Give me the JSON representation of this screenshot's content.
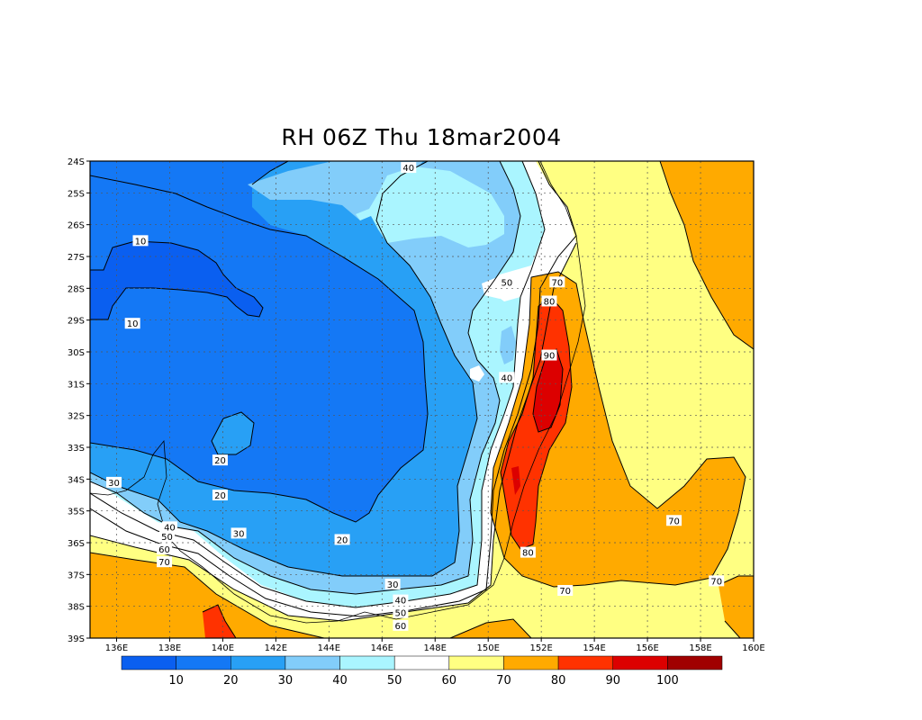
{
  "title": "RH 06Z Thu 18mar2004",
  "chart_data": {
    "type": "contour-map",
    "variable": "RH",
    "lon_range": [
      135,
      160
    ],
    "lat_range": [
      -39,
      -24
    ],
    "lon_ticks": [
      "136E",
      "138E",
      "140E",
      "142E",
      "144E",
      "146E",
      "148E",
      "150E",
      "152E",
      "154E",
      "156E",
      "158E",
      "160E"
    ],
    "lat_ticks": [
      "24S",
      "25S",
      "26S",
      "27S",
      "28S",
      "29S",
      "30S",
      "31S",
      "32S",
      "33S",
      "34S",
      "35S",
      "36S",
      "37S",
      "38S",
      "39S"
    ],
    "grid": true,
    "levels": [
      10,
      20,
      30,
      40,
      50,
      60,
      70,
      80,
      90,
      100
    ],
    "colorbar_labels": [
      "10",
      "20",
      "30",
      "40",
      "50",
      "60",
      "70",
      "80",
      "90",
      "100"
    ],
    "colors": [
      "#0a5ff0",
      "#1478f5",
      "#28a0f5",
      "#82cdfa",
      "#aaf5ff",
      "#ffffff",
      "#ffff82",
      "#ffaa00",
      "#ff3200",
      "#dc0000",
      "#a00000"
    ],
    "contour_labels": [
      {
        "text": "40",
        "lon": 147.0,
        "lat": -24.2
      },
      {
        "text": "10",
        "lon": 136.9,
        "lat": -26.5
      },
      {
        "text": "10",
        "lon": 136.6,
        "lat": -29.1
      },
      {
        "text": "50",
        "lon": 150.7,
        "lat": -27.8
      },
      {
        "text": "70",
        "lon": 152.6,
        "lat": -27.8
      },
      {
        "text": "80",
        "lon": 152.3,
        "lat": -28.4
      },
      {
        "text": "90",
        "lon": 152.3,
        "lat": -30.1
      },
      {
        "text": "40",
        "lon": 150.7,
        "lat": -30.8
      },
      {
        "text": "20",
        "lon": 139.9,
        "lat": -33.4
      },
      {
        "text": "20",
        "lon": 139.9,
        "lat": -34.5
      },
      {
        "text": "30",
        "lon": 135.9,
        "lat": -34.1
      },
      {
        "text": "40",
        "lon": 138.0,
        "lat": -35.5
      },
      {
        "text": "50",
        "lon": 137.9,
        "lat": -35.8
      },
      {
        "text": "30",
        "lon": 140.6,
        "lat": -35.7
      },
      {
        "text": "60",
        "lon": 137.8,
        "lat": -36.2
      },
      {
        "text": "70",
        "lon": 137.8,
        "lat": -36.6
      },
      {
        "text": "20",
        "lon": 144.5,
        "lat": -35.9
      },
      {
        "text": "80",
        "lon": 151.5,
        "lat": -36.3
      },
      {
        "text": "70",
        "lon": 157.0,
        "lat": -35.3
      },
      {
        "text": "70",
        "lon": 158.6,
        "lat": -37.2
      },
      {
        "text": "30",
        "lon": 146.4,
        "lat": -37.3
      },
      {
        "text": "70",
        "lon": 152.9,
        "lat": -37.5
      },
      {
        "text": "40",
        "lon": 146.7,
        "lat": -37.8
      },
      {
        "text": "50",
        "lon": 146.7,
        "lat": -38.2
      },
      {
        "text": "60",
        "lon": 146.7,
        "lat": -38.6
      }
    ]
  }
}
